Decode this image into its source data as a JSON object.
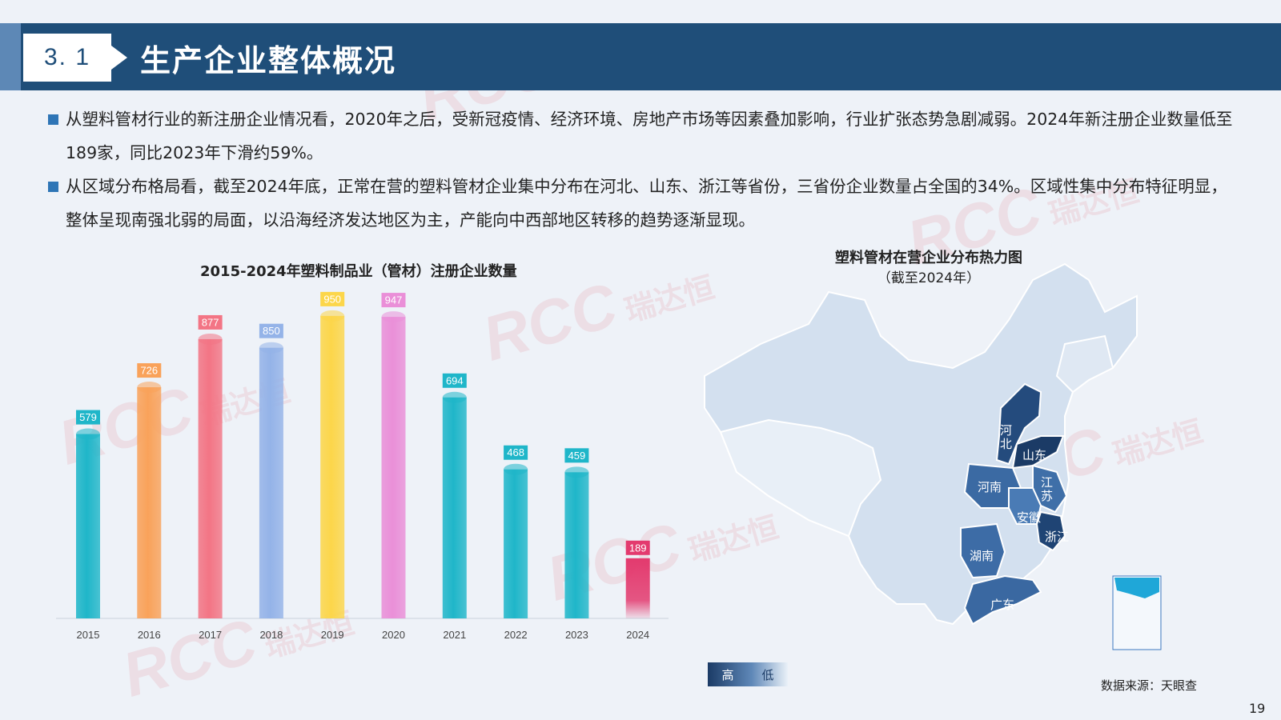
{
  "header": {
    "section_number": "3. 1",
    "title": "生产企业整体概况"
  },
  "bullets": [
    "从塑料管材行业的新注册企业情况看，2020年之后，受新冠疫情、经济环境、房地产市场等因素叠加影响，行业扩张态势急剧减弱。2024年新注册企业数量低至189家，同比2023年下滑约59%。",
    "从区域分布格局看，截至2024年底，正常在营的塑料管材企业集中分布在河北、山东、浙江等省份，三省份企业数量占全国的34%。区域性集中分布特征明显，整体呈现南强北弱的局面，以沿海经济发达地区为主，产能向中西部地区转移的趋势逐渐显现。"
  ],
  "chart_data": {
    "type": "bar",
    "title": "2015-2024年塑料制品业（管材）注册企业数量",
    "categories": [
      "2015",
      "2016",
      "2017",
      "2018",
      "2019",
      "2020",
      "2021",
      "2022",
      "2023",
      "2024"
    ],
    "values": [
      579,
      726,
      877,
      850,
      950,
      947,
      694,
      468,
      459,
      189
    ],
    "colors": [
      "#1fb6c9",
      "#f9a25a",
      "#f37585",
      "#94b3e8",
      "#fcd64a",
      "#ea8fd8",
      "#1fb6c9",
      "#1fb6c9",
      "#1fb6c9",
      "#e33a6e"
    ],
    "xlabel": "",
    "ylabel": "",
    "ylim": [
      0,
      1000
    ],
    "grid": false,
    "legend": "none"
  },
  "map": {
    "title": "塑料管材在营企业分布热力图",
    "subtitle": "（截至2024年）",
    "provinces": [
      "河北",
      "山东",
      "河南",
      "江苏",
      "安徽",
      "浙江",
      "湖南",
      "广东"
    ],
    "legend_high": "高",
    "legend_low": "低",
    "colors": {
      "high": "#1b3b66",
      "mid": "#3f6fa8",
      "low": "#eaf1f8"
    }
  },
  "watermark": {
    "text": "RCC",
    "cn": "瑞达恒"
  },
  "source": "数据来源：天眼查",
  "page_number": "19"
}
